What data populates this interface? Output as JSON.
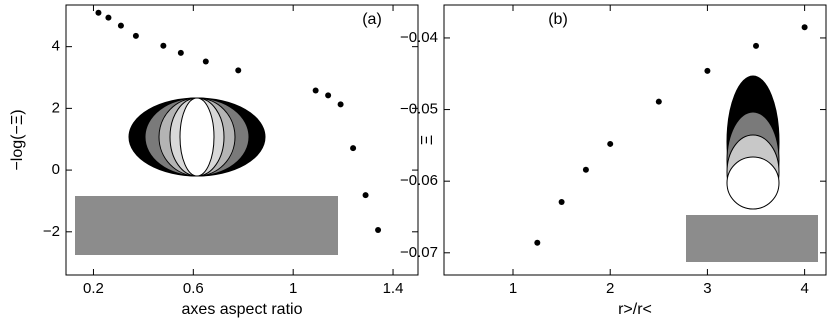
{
  "chart_data": [
    {
      "type": "scatter",
      "annotation": "(a)",
      "x_label": "axes aspect ratio",
      "y_label": "−log(−Ξ)",
      "color": "#000000",
      "x": [
        0.22,
        0.26,
        0.31,
        0.37,
        0.48,
        0.55,
        0.65,
        0.78,
        1.09,
        1.14,
        1.19,
        1.24,
        1.29,
        1.34
      ],
      "values": [
        5.1,
        4.94,
        4.68,
        4.35,
        4.03,
        3.8,
        3.52,
        3.23,
        2.58,
        2.42,
        2.13,
        0.71,
        -0.81,
        -1.94
      ],
      "xlim": [
        0.09,
        1.5
      ],
      "ylim": [
        -3.4,
        5.35
      ],
      "xticks": [
        0.2,
        0.6,
        1,
        1.4
      ],
      "yticks": [
        {
          "value": -2,
          "label": "−2"
        },
        0,
        2,
        4
      ]
    },
    {
      "type": "scatter",
      "annotation": "(b)",
      "x_label": "r>/r<",
      "y_label": "Ξ",
      "color": "#000000",
      "x": [
        1.25,
        1.5,
        1.75,
        2,
        2.5,
        3,
        3.5,
        4
      ],
      "values": [
        -0.0686,
        -0.0629,
        -0.0584,
        -0.0548,
        -0.0489,
        -0.0446,
        -0.0411,
        -0.0385
      ],
      "xlim": [
        0.29,
        4.22
      ],
      "ylim": [
        -0.0731,
        -0.0354
      ],
      "xticks": [
        1,
        2,
        3,
        4
      ],
      "yticks": [
        {
          "value": -0.07,
          "label": "−0.07"
        },
        {
          "value": -0.06,
          "label": "−0.06"
        },
        {
          "value": -0.05,
          "label": "−0.05"
        },
        {
          "value": -0.04,
          "label": "−0.04"
        }
      ]
    }
  ]
}
